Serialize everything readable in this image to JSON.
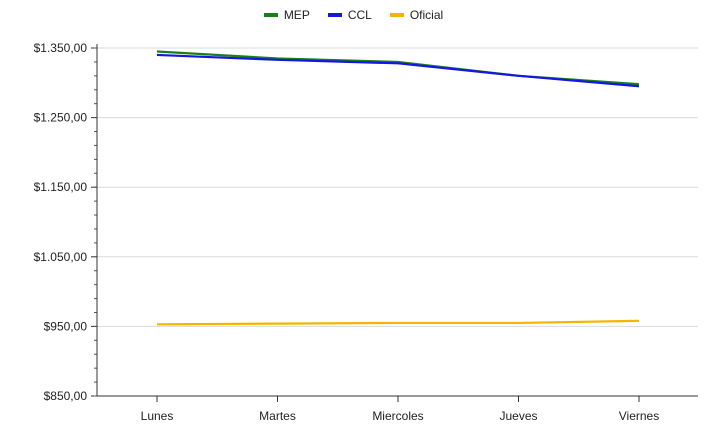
{
  "chart_data": {
    "type": "line",
    "categories": [
      "Lunes",
      "Martes",
      "Miercoles",
      "Jueves",
      "Viernes"
    ],
    "series": [
      {
        "name": "MEP",
        "color": "#1a7f1a",
        "values": [
          1345,
          1335,
          1330,
          1310,
          1298
        ]
      },
      {
        "name": "CCL",
        "color": "#1515e6",
        "values": [
          1340,
          1333,
          1328,
          1310,
          1295
        ]
      },
      {
        "name": "Oficial",
        "color": "#f5b400",
        "values": [
          953,
          954,
          955,
          955,
          958
        ]
      }
    ],
    "ylim": [
      850,
      1350
    ],
    "yticks": [
      850,
      950,
      1050,
      1150,
      1250,
      1350
    ],
    "ytick_labels": [
      "$850,00",
      "$950,00",
      "$1.050,00",
      "$1.150,00",
      "$1.250,00",
      "$1.350,00"
    ],
    "grid": true,
    "legend_position": "top-center"
  }
}
